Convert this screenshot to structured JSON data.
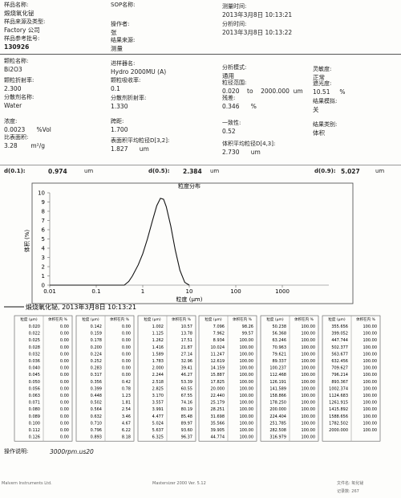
{
  "header": {
    "fields": [
      {
        "label": "样品名称:",
        "value": "煅烧氧化铋"
      },
      {
        "label": "SOP名称:",
        "value": ""
      },
      {
        "label": "测量时间:",
        "value": "2013年3月8日 10:13:21"
      },
      {
        "label": "样品来源及类型:",
        "value": "Factory 公司"
      },
      {
        "label": "操作者:",
        "value": "张"
      },
      {
        "label": "分析时间:",
        "value": "2013年3月8日 10:13:22"
      },
      {
        "label": "样品参考批号:",
        "value": "130926"
      },
      {
        "label": "结果来源:",
        "value": "测量"
      }
    ]
  },
  "parameters": {
    "fields": [
      {
        "label": "颗粒名称:",
        "value": "Bi2O3"
      },
      {
        "label": "进样器名:",
        "value": "Hydro 2000MU (A)"
      },
      {
        "label": "分析模式:",
        "value": "通用"
      },
      {
        "label": "灵敏度:",
        "value": "正常"
      },
      {
        "label": "颗粒折射率:",
        "value": "2.300"
      },
      {
        "label": "颗粒吸收率:",
        "value": "0.1"
      },
      {
        "label": "粒径范围:",
        "value": "0.020    to    2000.000  um"
      },
      {
        "label": "遮光度:",
        "value": "10.51     %"
      },
      {
        "label": "分散剂名称:",
        "value": "Water"
      },
      {
        "label": "分散剂折射率:",
        "value": "1.330"
      },
      {
        "label": "残差:",
        "value": "0.346      %"
      },
      {
        "label": "结果模拟:",
        "value": "关"
      },
      {
        "label": "浓度:",
        "value": "0.0023      %Vol"
      },
      {
        "label": "跨距:",
        "value": "1.700"
      },
      {
        "label": "一致性:",
        "value": "0.52"
      },
      {
        "label": "结果类别:",
        "value": "体积"
      },
      {
        "label": "比表面积:",
        "value": "3.28       m²/g"
      },
      {
        "label": "表面积平均粒径D[3,2]:",
        "value": "1.827      um"
      },
      {
        "label": "体积平均粒径D[4,3]:",
        "value": "2.730      um"
      }
    ]
  },
  "percentiles": [
    {
      "label": "d(0.1):",
      "value": "0.974",
      "unit": "um"
    },
    {
      "label": "d(0.5):",
      "value": "2.384",
      "unit": "um"
    },
    {
      "label": "d(0.9):",
      "value": "5.027",
      "unit": "um"
    }
  ],
  "chart": {
    "type": "line",
    "title": "粒度分布",
    "x_label": "粒度 (μm)",
    "y_label": "体积 (%)",
    "log_x": true,
    "color": "#111111",
    "legend": "煅烧氧化铋, 2013年3月8日 10:13:21",
    "x": [
      0.01,
      0.3,
      0.4,
      0.5,
      0.6,
      0.8,
      1.0,
      1.26,
      1.6,
      2.0,
      2.4,
      2.8,
      3.2,
      4.0,
      5.0,
      6.3,
      8.0,
      10
    ],
    "values": [
      0,
      0,
      0,
      0.4,
      1.0,
      2.2,
      3.4,
      5.0,
      6.9,
      8.6,
      9.4,
      9.3,
      8.5,
      6.4,
      3.8,
      1.6,
      0.3,
      0
    ],
    "xlim": [
      0.01,
      10000
    ],
    "xticks": [
      0.01,
      0.1,
      1,
      10,
      100,
      1000
    ],
    "ylim": [
      0,
      10
    ],
    "yticks": [
      0,
      1,
      2,
      3,
      4,
      5,
      6,
      7,
      8,
      9,
      10
    ]
  },
  "table": {
    "headers": [
      "粒度 (μm)",
      "体积在内 %"
    ],
    "groups": [
      [
        [
          "0.020",
          "0.00"
        ],
        [
          "0.022",
          "0.00"
        ],
        [
          "0.025",
          "0.00"
        ],
        [
          "0.028",
          "0.00"
        ],
        [
          "0.032",
          "0.00"
        ],
        [
          "0.036",
          "0.00"
        ],
        [
          "0.040",
          "0.00"
        ],
        [
          "0.045",
          "0.00"
        ],
        [
          "0.050",
          "0.00"
        ],
        [
          "0.056",
          "0.00"
        ],
        [
          "0.063",
          "0.00"
        ],
        [
          "0.071",
          "0.00"
        ],
        [
          "0.080",
          "0.00"
        ],
        [
          "0.089",
          "0.00"
        ],
        [
          "0.100",
          "0.00"
        ],
        [
          "0.112",
          "0.00"
        ],
        [
          "0.126",
          "0.00"
        ]
      ],
      [
        [
          "0.142",
          "0.00"
        ],
        [
          "0.159",
          "0.00"
        ],
        [
          "0.178",
          "0.00"
        ],
        [
          "0.200",
          "0.00"
        ],
        [
          "0.224",
          "0.00"
        ],
        [
          "0.252",
          "0.00"
        ],
        [
          "0.283",
          "0.00"
        ],
        [
          "0.317",
          "0.00"
        ],
        [
          "0.356",
          "0.42"
        ],
        [
          "0.399",
          "0.78"
        ],
        [
          "0.448",
          "1.23"
        ],
        [
          "0.502",
          "1.81"
        ],
        [
          "0.564",
          "2.54"
        ],
        [
          "0.632",
          "3.46"
        ],
        [
          "0.710",
          "4.67"
        ],
        [
          "0.796",
          "6.22"
        ],
        [
          "0.893",
          "8.18"
        ]
      ],
      [
        [
          "1.002",
          "10.57"
        ],
        [
          "1.125",
          "13.78"
        ],
        [
          "1.262",
          "17.51"
        ],
        [
          "1.416",
          "21.87"
        ],
        [
          "1.589",
          "27.14"
        ],
        [
          "1.783",
          "32.96"
        ],
        [
          "2.000",
          "39.41"
        ],
        [
          "2.244",
          "46.27"
        ],
        [
          "2.518",
          "53.39"
        ],
        [
          "2.825",
          "60.55"
        ],
        [
          "3.170",
          "67.55"
        ],
        [
          "3.557",
          "74.16"
        ],
        [
          "3.991",
          "80.19"
        ],
        [
          "4.477",
          "85.48"
        ],
        [
          "5.024",
          "89.97"
        ],
        [
          "5.637",
          "93.60"
        ],
        [
          "6.325",
          "96.37"
        ]
      ],
      [
        [
          "7.096",
          "98.26"
        ],
        [
          "7.962",
          "99.57"
        ],
        [
          "8.934",
          "100.00"
        ],
        [
          "10.024",
          "100.00"
        ],
        [
          "11.247",
          "100.00"
        ],
        [
          "12.619",
          "100.00"
        ],
        [
          "14.159",
          "100.00"
        ],
        [
          "15.887",
          "100.00"
        ],
        [
          "17.825",
          "100.00"
        ],
        [
          "20.000",
          "100.00"
        ],
        [
          "22.440",
          "100.00"
        ],
        [
          "25.179",
          "100.00"
        ],
        [
          "28.251",
          "100.00"
        ],
        [
          "31.698",
          "100.00"
        ],
        [
          "35.566",
          "100.00"
        ],
        [
          "39.905",
          "100.00"
        ],
        [
          "44.774",
          "100.00"
        ]
      ],
      [
        [
          "50.238",
          "100.00"
        ],
        [
          "56.368",
          "100.00"
        ],
        [
          "63.246",
          "100.00"
        ],
        [
          "70.963",
          "100.00"
        ],
        [
          "79.621",
          "100.00"
        ],
        [
          "89.337",
          "100.00"
        ],
        [
          "100.237",
          "100.00"
        ],
        [
          "112.468",
          "100.00"
        ],
        [
          "126.191",
          "100.00"
        ],
        [
          "141.589",
          "100.00"
        ],
        [
          "158.866",
          "100.00"
        ],
        [
          "178.250",
          "100.00"
        ],
        [
          "200.000",
          "100.00"
        ],
        [
          "224.404",
          "100.00"
        ],
        [
          "251.785",
          "100.00"
        ],
        [
          "282.508",
          "100.00"
        ],
        [
          "316.979",
          "100.00"
        ]
      ],
      [
        [
          "355.656",
          "100.00"
        ],
        [
          "399.052",
          "100.00"
        ],
        [
          "447.744",
          "100.00"
        ],
        [
          "502.377",
          "100.00"
        ],
        [
          "563.677",
          "100.00"
        ],
        [
          "632.456",
          "100.00"
        ],
        [
          "709.627",
          "100.00"
        ],
        [
          "796.214",
          "100.00"
        ],
        [
          "893.367",
          "100.00"
        ],
        [
          "1002.374",
          "100.00"
        ],
        [
          "1124.683",
          "100.00"
        ],
        [
          "1261.915",
          "100.00"
        ],
        [
          "1415.892",
          "100.00"
        ],
        [
          "1588.656",
          "100.00"
        ],
        [
          "1782.502",
          "100.00"
        ],
        [
          "2000.000",
          "100.00"
        ]
      ]
    ]
  },
  "notes": {
    "label": "操作说明:",
    "value": "3000rpm.us20"
  },
  "footer": [
    "Malvern Instruments Ltd.",
    "Mastersizer 2000 Ver. 5.12",
    "文件名: 氧化铋",
    "记录数: 267"
  ]
}
